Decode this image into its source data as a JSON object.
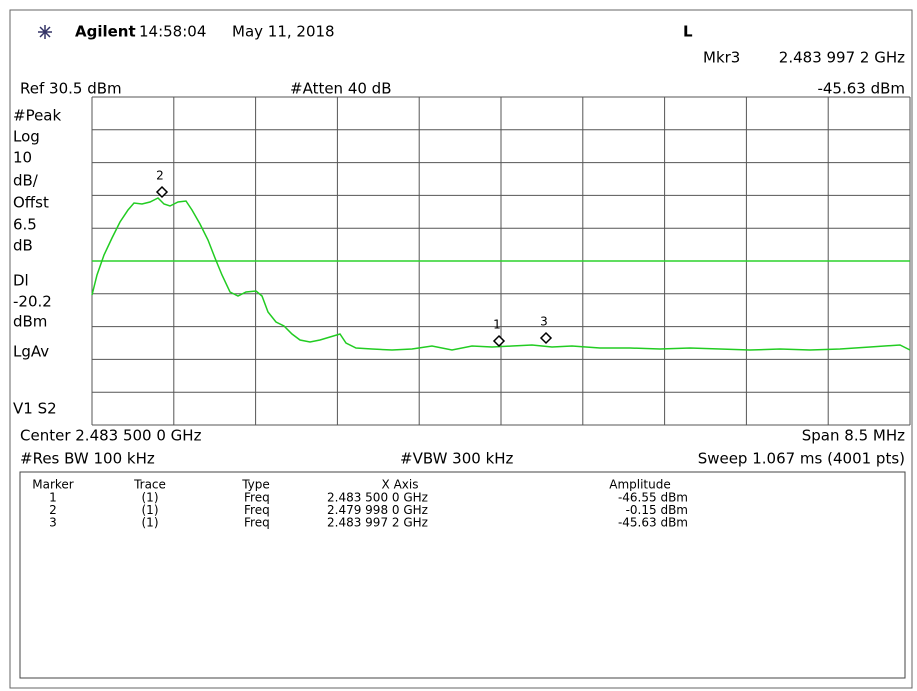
{
  "header": {
    "brand": "Agilent",
    "time": "14:58:04",
    "date": "May 11, 2018",
    "mode": "L",
    "marker_readout": {
      "label": "Mkr3",
      "frequency": "2.483 997 2 GHz"
    }
  },
  "settings": {
    "ref": "Ref 30.5 dBm",
    "atten": "#Atten 40 dB",
    "marker_amplitude": "-45.63 dBm"
  },
  "left_labels": [
    "#Peak",
    "Log",
    "10",
    "dB/",
    "Offst",
    "6.5",
    "dB",
    "Dl",
    "-20.2",
    "dBm",
    "LgAv",
    "V1  S2"
  ],
  "trace_markers": [
    "1",
    "2",
    "3"
  ],
  "footer": {
    "center": "Center 2.483 500 0 GHz",
    "span": "Span 8.5 MHz",
    "res_bw": "#Res BW 100 kHz",
    "vbw": "#VBW 300 kHz",
    "sweep": "Sweep 1.067 ms (4001 pts)"
  },
  "table": {
    "columns": [
      "Marker",
      "Trace",
      "Type",
      "X Axis",
      "Amplitude"
    ],
    "rows": [
      [
        "1",
        "(1)",
        "Freq",
        "2.483 500 0 GHz",
        "-46.55 dBm"
      ],
      [
        "2",
        "(1)",
        "Freq",
        "2.479 998 0 GHz",
        "-0.15 dBm"
      ],
      [
        "3",
        "(1)",
        "Freq",
        "2.483 997 2 GHz",
        "-45.63 dBm"
      ]
    ]
  }
}
